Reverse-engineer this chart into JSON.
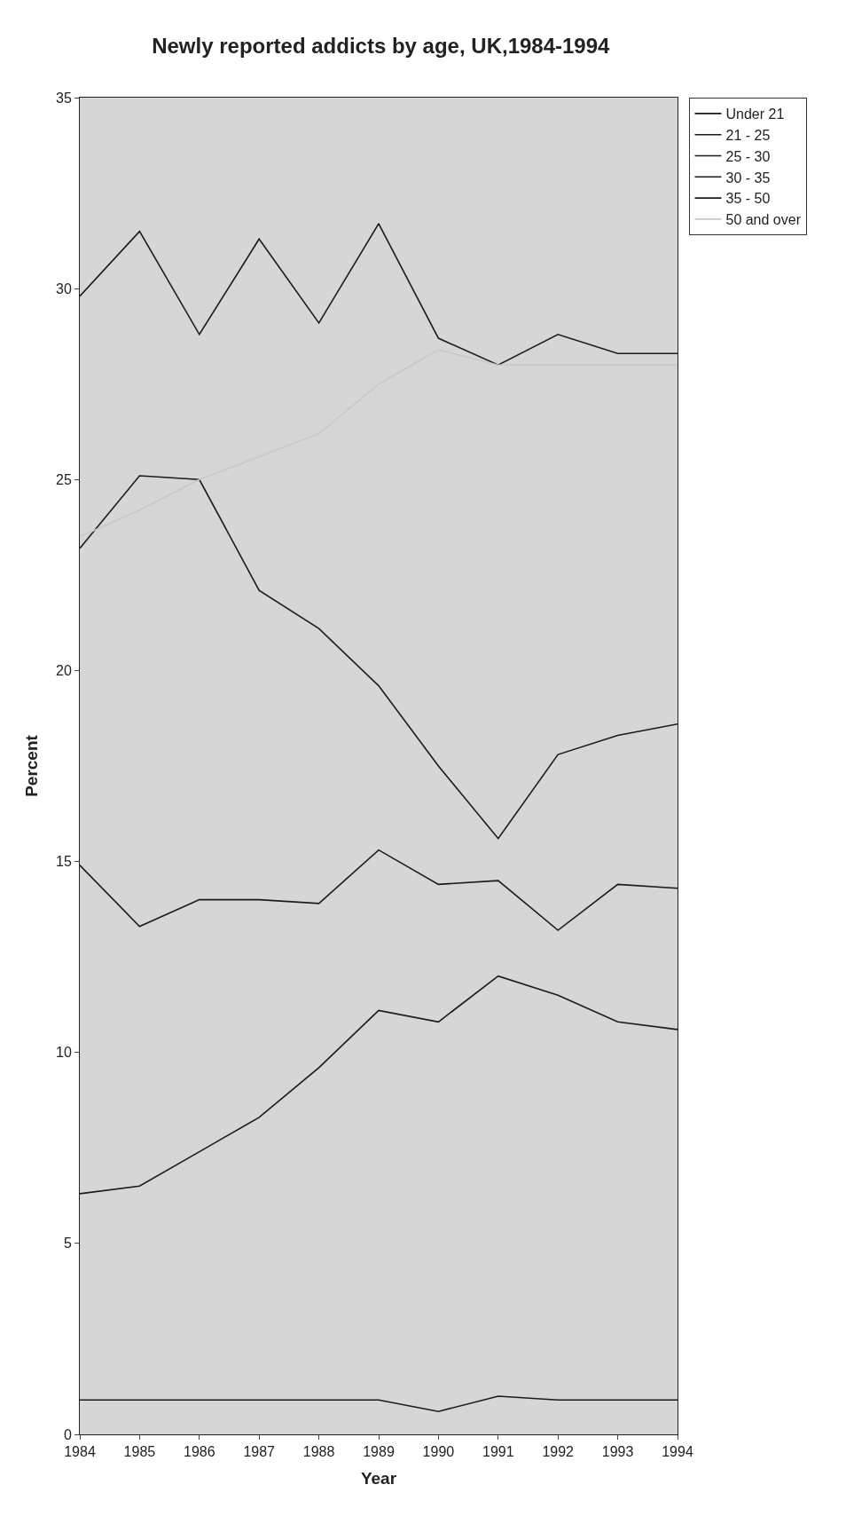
{
  "chart_data": {
    "type": "line",
    "title": "Newly reported addicts by age, UK,1984-1994",
    "xlabel": "Year",
    "ylabel": "Percent",
    "x": [
      1984,
      1985,
      1986,
      1987,
      1988,
      1989,
      1990,
      1991,
      1992,
      1993,
      1994
    ],
    "series": [
      {
        "name": "Under 21",
        "color": "#1a1a1a",
        "values": [
          29.8,
          31.5,
          28.8,
          31.3,
          29.1,
          31.7,
          28.7,
          28.0,
          28.8,
          28.3,
          28.3
        ]
      },
      {
        "name": "21 - 25",
        "color": "#1a1a1a",
        "values": [
          23.2,
          25.1,
          25.0,
          22.1,
          21.1,
          19.6,
          17.5,
          15.6,
          17.8,
          18.3,
          18.6
        ]
      },
      {
        "name": "25 - 30",
        "color": "#1a1a1a",
        "values": [
          14.9,
          13.3,
          14.0,
          14.0,
          13.9,
          15.3,
          14.4,
          14.5,
          13.2,
          14.4,
          14.3
        ]
      },
      {
        "name": "30 - 35",
        "color": "#1a1a1a",
        "values": [
          6.3,
          6.5,
          7.4,
          8.3,
          9.6,
          11.1,
          10.8,
          12.0,
          11.5,
          10.8,
          10.6
        ]
      },
      {
        "name": "35 - 50",
        "color": "#1a1a1a",
        "values": [
          0.9,
          0.9,
          0.9,
          0.9,
          0.9,
          0.9,
          0.6,
          1.0,
          0.9,
          0.9,
          0.9
        ]
      },
      {
        "name": "50 and over",
        "color": "#c8c8c8",
        "values": [
          23.5,
          24.2,
          25.0,
          25.6,
          26.2,
          27.5,
          28.4,
          28.0,
          28.0,
          28.0,
          28.0
        ]
      }
    ],
    "xlim": [
      1984,
      1994
    ],
    "xticks": [
      1984,
      1985,
      1986,
      1987,
      1988,
      1989,
      1990,
      1991,
      1992,
      1993,
      1994
    ],
    "ylim": [
      0,
      35
    ],
    "yticks": [
      0,
      5,
      10,
      15,
      20,
      25,
      30,
      35
    ],
    "grid": false,
    "legend": "top right",
    "marker": "none",
    "line_style": "solid"
  }
}
